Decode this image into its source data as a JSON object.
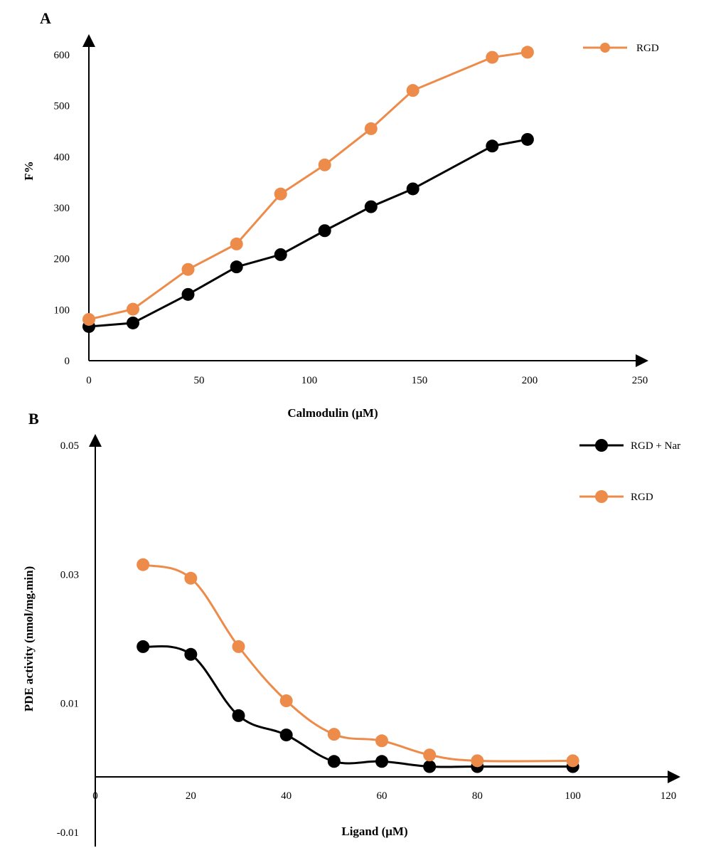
{
  "chart_data": [
    {
      "panel": "A",
      "type": "line",
      "xlabel": "Calmodulin (μM)",
      "ylabel": "F%",
      "xlim": [
        0,
        250
      ],
      "ylim": [
        0,
        600
      ],
      "xticks": [
        "0",
        "50",
        "100",
        "150",
        "200",
        "250"
      ],
      "yticks": [
        "0",
        "100",
        "200",
        "300",
        "400",
        "500",
        "600"
      ],
      "grid": false,
      "legend_position": "top-right",
      "series": [
        {
          "color": "#000000",
          "smooth": false,
          "x": [
            0,
            20,
            45,
            67,
            87,
            107,
            128,
            147,
            183,
            199
          ],
          "y": [
            67,
            74,
            130,
            184,
            208,
            255,
            302,
            337,
            421,
            434
          ]
        },
        {
          "name": "RGD",
          "color": "#ED8B4A",
          "smooth": false,
          "x": [
            0,
            20,
            45,
            67,
            87,
            107,
            128,
            147,
            183,
            199
          ],
          "y": [
            81,
            101,
            179,
            229,
            327,
            384,
            455,
            530,
            595,
            605
          ]
        }
      ]
    },
    {
      "panel": "B",
      "type": "line",
      "xlabel": "Ligand (μM)",
      "ylabel": "PDE activity (nmol/mg.min)",
      "xlim": [
        0,
        120
      ],
      "ylim": [
        -0.01,
        0.05
      ],
      "xticks": [
        "0",
        "20",
        "40",
        "60",
        "80",
        "100",
        "120"
      ],
      "yticks": [
        "-0.01",
        "0.01",
        "0.03",
        "0.05"
      ],
      "grid": false,
      "legend_position": "top-right",
      "series": [
        {
          "name": "RGD + Nar",
          "color": "#000000",
          "smooth": true,
          "x": [
            10,
            20,
            30,
            40,
            50,
            60,
            70,
            80,
            100
          ],
          "y": [
            0.0188,
            0.0176,
            0.0081,
            0.0051,
            0.001,
            0.001,
            0.0002,
            0.0002,
            0.0002
          ]
        },
        {
          "name": "RGD",
          "color": "#ED8B4A",
          "smooth": true,
          "x": [
            10,
            20,
            30,
            40,
            50,
            60,
            70,
            80,
            100
          ],
          "y": [
            0.0315,
            0.0294,
            0.0188,
            0.0104,
            0.0052,
            0.0042,
            0.002,
            0.0011,
            0.0011
          ]
        }
      ]
    }
  ]
}
